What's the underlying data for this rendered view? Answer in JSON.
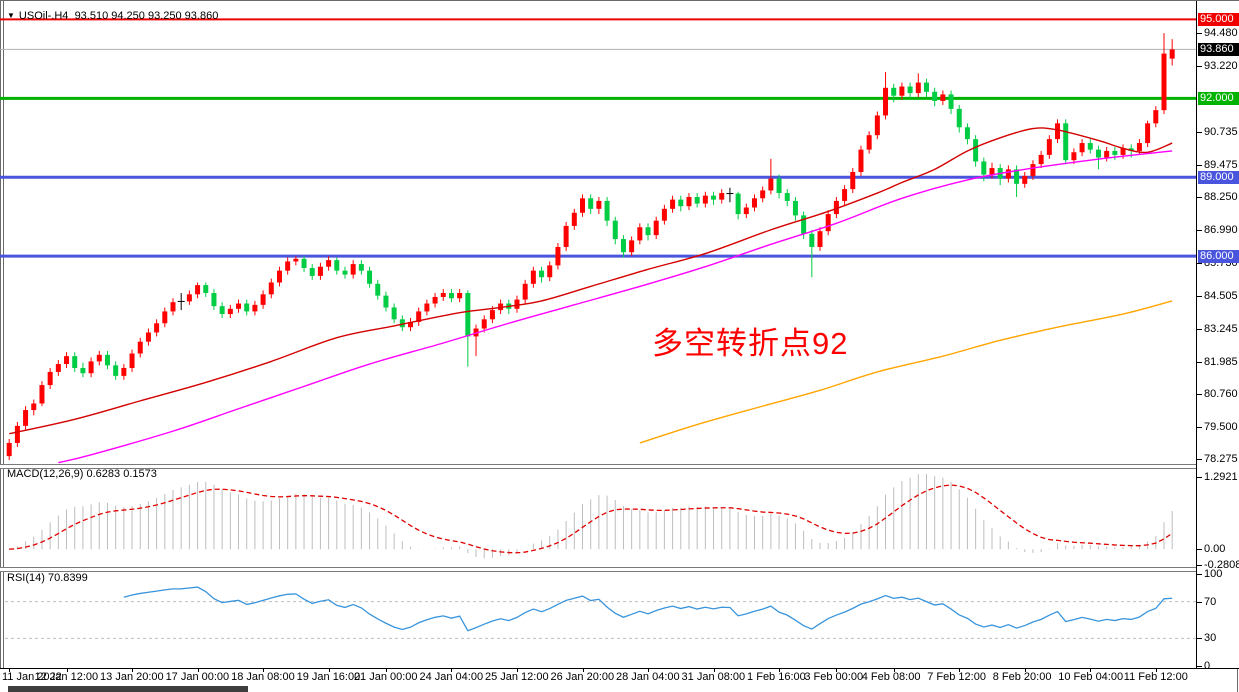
{
  "window": {
    "title": {
      "collapse_arrow": "▼",
      "symbol_period": "USOil-.H4",
      "ohlc_text": "93.510 94.250 93.250 93.860"
    }
  },
  "annotation": {
    "text": "多空转折点92",
    "color": "#ff0000"
  },
  "indicators": {
    "macd": {
      "label": "MACD(12,26,9)",
      "main_value": "0.6283",
      "signal_value": "0.1573",
      "axis_max": "1.2921",
      "axis_zero": "0.00",
      "axis_min": "-0.2808",
      "histogram_color": "#bdbdbd",
      "signal_color": "#e00000"
    },
    "rsi": {
      "label": "RSI(14)",
      "value": "70.8399",
      "axis": [
        "100",
        "70",
        "30",
        "0"
      ],
      "levels": [
        70,
        30
      ],
      "line_color": "#3894dc",
      "level_color": "#bfbfbf"
    }
  },
  "price_axis": {
    "ticks": [
      "94.480",
      "93.220",
      "90.735",
      "89.475",
      "88.250",
      "86.990",
      "85.730",
      "84.505",
      "83.245",
      "81.985",
      "80.760",
      "79.500",
      "78.275"
    ],
    "current_price_badge": {
      "label": "93.860",
      "bg": "#000000"
    }
  },
  "hlines": [
    {
      "name": "resistance-95",
      "label": "95.000",
      "value": 95.0,
      "color": "#f20000",
      "width": 2
    },
    {
      "name": "pivot-92",
      "label": "92.000",
      "value": 92.0,
      "color": "#00b300",
      "width": 3
    },
    {
      "name": "support-89",
      "label": "89.000",
      "value": 89.0,
      "color": "#4a55dd",
      "width": 3
    },
    {
      "name": "support-86",
      "label": "86.000",
      "value": 86.0,
      "color": "#4a55dd",
      "width": 3
    }
  ],
  "time_axis": {
    "labels": [
      {
        "t": "11 Jan 2022",
        "b": 0
      },
      {
        "t": "12 Jan 12:00",
        "b": 7
      },
      {
        "t": "13 Jan 20:00",
        "b": 15
      },
      {
        "t": "17 Jan 00:00",
        "b": 23
      },
      {
        "t": "18 Jan 08:00",
        "b": 31
      },
      {
        "t": "19 Jan 16:00",
        "b": 39
      },
      {
        "t": "21 Jan 00:00",
        "b": 46
      },
      {
        "t": "24 Jan 04:00",
        "b": 54
      },
      {
        "t": "25 Jan 12:00",
        "b": 62
      },
      {
        "t": "26 Jan 20:00",
        "b": 70
      },
      {
        "t": "28 Jan 04:00",
        "b": 78
      },
      {
        "t": "31 Jan 08:00",
        "b": 86
      },
      {
        "t": "1 Feb 16:00",
        "b": 94
      },
      {
        "t": "3 Feb 00:00",
        "b": 101
      },
      {
        "t": "4 Feb 08:00",
        "b": 108
      },
      {
        "t": "7 Feb 12:00",
        "b": 116
      },
      {
        "t": "8 Feb 20:00",
        "b": 124
      },
      {
        "t": "10 Feb 04:00",
        "b": 132
      },
      {
        "t": "11 Feb 12:00",
        "b": 140
      }
    ]
  },
  "chart_data": {
    "type": "candlestick+indicators",
    "symbol": "USOil",
    "timeframe": "H4",
    "current_price": 93.86,
    "price_view_range": [
      78.1,
      95.32
    ],
    "up_color": "#ff0000",
    "down_color": "#00cc44",
    "doji_color": "#000000",
    "candles": [
      [
        78.4,
        79.05,
        78.25,
        78.9
      ],
      [
        78.9,
        79.7,
        78.75,
        79.55
      ],
      [
        79.55,
        80.3,
        79.4,
        80.15
      ],
      [
        80.15,
        80.55,
        79.95,
        80.4
      ],
      [
        80.4,
        81.25,
        80.3,
        81.1
      ],
      [
        81.1,
        81.75,
        80.95,
        81.6
      ],
      [
        81.6,
        82.05,
        81.45,
        81.9
      ],
      [
        81.9,
        82.35,
        81.75,
        82.2
      ],
      [
        82.2,
        82.35,
        81.6,
        81.75
      ],
      [
        81.75,
        81.95,
        81.4,
        81.55
      ],
      [
        81.55,
        82.15,
        81.4,
        82.0
      ],
      [
        82.0,
        82.4,
        81.85,
        82.25
      ],
      [
        82.25,
        82.4,
        81.7,
        81.85
      ],
      [
        81.85,
        82.0,
        81.3,
        81.45
      ],
      [
        81.45,
        81.9,
        81.3,
        81.75
      ],
      [
        81.75,
        82.45,
        81.6,
        82.3
      ],
      [
        82.3,
        82.9,
        82.15,
        82.75
      ],
      [
        82.75,
        83.25,
        82.6,
        83.1
      ],
      [
        83.1,
        83.6,
        82.95,
        83.45
      ],
      [
        83.45,
        84.05,
        83.3,
        83.9
      ],
      [
        83.9,
        84.4,
        83.75,
        84.25
      ],
      [
        84.25,
        84.6,
        83.95,
        84.28
      ],
      [
        84.28,
        84.7,
        84.15,
        84.55
      ],
      [
        84.55,
        85.0,
        84.4,
        84.9
      ],
      [
        84.9,
        85.0,
        84.45,
        84.6
      ],
      [
        84.6,
        84.75,
        83.95,
        84.1
      ],
      [
        84.1,
        84.25,
        83.65,
        83.8
      ],
      [
        83.8,
        84.15,
        83.65,
        84.0
      ],
      [
        84.0,
        84.35,
        83.85,
        84.2
      ],
      [
        84.2,
        84.35,
        83.75,
        83.9
      ],
      [
        83.9,
        84.3,
        83.75,
        84.15
      ],
      [
        84.15,
        84.7,
        84.0,
        84.55
      ],
      [
        84.55,
        85.15,
        84.4,
        85.0
      ],
      [
        85.0,
        85.6,
        84.85,
        85.45
      ],
      [
        85.45,
        85.95,
        85.3,
        85.8
      ],
      [
        85.8,
        86.0,
        85.65,
        85.9
      ],
      [
        85.9,
        86.0,
        85.4,
        85.55
      ],
      [
        85.55,
        85.7,
        85.1,
        85.25
      ],
      [
        85.25,
        85.75,
        85.1,
        85.6
      ],
      [
        85.6,
        86.0,
        85.45,
        85.85
      ],
      [
        85.85,
        85.95,
        85.3,
        85.45
      ],
      [
        85.45,
        85.6,
        85.15,
        85.3
      ],
      [
        85.3,
        85.85,
        85.15,
        85.7
      ],
      [
        85.7,
        85.85,
        85.3,
        85.45
      ],
      [
        85.45,
        85.6,
        84.8,
        84.95
      ],
      [
        84.95,
        85.1,
        84.35,
        84.5
      ],
      [
        84.5,
        84.65,
        83.9,
        84.05
      ],
      [
        84.05,
        84.2,
        83.45,
        83.6
      ],
      [
        83.6,
        83.75,
        83.15,
        83.3
      ],
      [
        83.3,
        83.65,
        83.15,
        83.5
      ],
      [
        83.5,
        84.05,
        83.35,
        83.9
      ],
      [
        83.9,
        84.35,
        83.75,
        84.2
      ],
      [
        84.2,
        84.6,
        84.05,
        84.45
      ],
      [
        84.45,
        84.75,
        84.3,
        84.6
      ],
      [
        84.6,
        84.75,
        84.25,
        84.4
      ],
      [
        84.4,
        84.75,
        84.25,
        84.6
      ],
      [
        84.6,
        84.7,
        81.8,
        82.95
      ],
      [
        82.95,
        83.4,
        82.2,
        83.25
      ],
      [
        83.25,
        83.75,
        83.1,
        83.6
      ],
      [
        83.6,
        84.1,
        83.45,
        83.95
      ],
      [
        83.95,
        84.35,
        83.8,
        84.2
      ],
      [
        84.2,
        84.35,
        83.8,
        84.0
      ],
      [
        84.0,
        84.5,
        83.85,
        84.35
      ],
      [
        84.35,
        85.1,
        84.2,
        84.95
      ],
      [
        84.95,
        85.6,
        84.8,
        85.45
      ],
      [
        85.45,
        85.6,
        85.0,
        85.2
      ],
      [
        85.2,
        85.8,
        85.05,
        85.65
      ],
      [
        85.65,
        86.5,
        85.5,
        86.35
      ],
      [
        86.35,
        87.3,
        86.2,
        87.15
      ],
      [
        87.15,
        87.8,
        87.0,
        87.65
      ],
      [
        87.65,
        88.35,
        87.5,
        88.2
      ],
      [
        88.2,
        88.35,
        87.6,
        87.8
      ],
      [
        87.8,
        88.25,
        87.6,
        88.1
      ],
      [
        88.1,
        88.25,
        87.15,
        87.35
      ],
      [
        87.35,
        87.5,
        86.45,
        86.65
      ],
      [
        86.65,
        86.8,
        85.95,
        86.15
      ],
      [
        86.15,
        86.75,
        86.0,
        86.6
      ],
      [
        86.6,
        87.25,
        86.45,
        87.1
      ],
      [
        87.1,
        87.25,
        86.6,
        86.8
      ],
      [
        86.8,
        87.5,
        86.65,
        87.35
      ],
      [
        87.35,
        87.95,
        87.2,
        87.8
      ],
      [
        87.8,
        88.3,
        87.65,
        88.15
      ],
      [
        88.15,
        88.3,
        87.7,
        87.9
      ],
      [
        87.9,
        88.4,
        87.75,
        88.25
      ],
      [
        88.25,
        88.4,
        87.85,
        88.0
      ],
      [
        88.0,
        88.45,
        87.85,
        88.3
      ],
      [
        88.3,
        88.45,
        87.95,
        88.15
      ],
      [
        88.15,
        88.55,
        88.0,
        88.4
      ],
      [
        88.4,
        88.6,
        88.05,
        88.38
      ],
      [
        88.38,
        88.45,
        87.4,
        87.6
      ],
      [
        87.6,
        88.0,
        87.45,
        87.85
      ],
      [
        87.85,
        88.35,
        87.7,
        88.2
      ],
      [
        88.2,
        88.65,
        88.05,
        88.5
      ],
      [
        88.5,
        89.7,
        88.35,
        88.95
      ],
      [
        88.95,
        89.1,
        88.2,
        88.4
      ],
      [
        88.4,
        88.55,
        87.9,
        88.1
      ],
      [
        88.1,
        88.25,
        87.35,
        87.55
      ],
      [
        87.55,
        87.7,
        86.65,
        86.85
      ],
      [
        86.85,
        87.0,
        85.2,
        86.35
      ],
      [
        86.35,
        87.1,
        86.2,
        86.95
      ],
      [
        86.95,
        87.75,
        86.8,
        87.6
      ],
      [
        87.6,
        88.25,
        87.45,
        88.1
      ],
      [
        88.1,
        88.7,
        87.95,
        88.55
      ],
      [
        88.55,
        89.35,
        88.4,
        89.2
      ],
      [
        89.2,
        90.2,
        89.05,
        90.05
      ],
      [
        90.05,
        90.75,
        89.9,
        90.6
      ],
      [
        90.6,
        91.5,
        90.45,
        91.35
      ],
      [
        91.35,
        93.0,
        91.2,
        92.4
      ],
      [
        92.4,
        92.55,
        91.85,
        92.1
      ],
      [
        92.1,
        92.6,
        91.95,
        92.45
      ],
      [
        92.45,
        92.6,
        92.0,
        92.2
      ],
      [
        92.2,
        92.95,
        92.05,
        92.6
      ],
      [
        92.6,
        92.75,
        92.05,
        92.25
      ],
      [
        92.25,
        92.4,
        91.7,
        91.9
      ],
      [
        91.9,
        92.3,
        91.75,
        92.15
      ],
      [
        92.15,
        92.3,
        91.4,
        91.6
      ],
      [
        91.6,
        91.75,
        90.7,
        90.9
      ],
      [
        90.9,
        91.05,
        90.25,
        90.45
      ],
      [
        90.45,
        90.6,
        89.4,
        89.6
      ],
      [
        89.6,
        89.75,
        88.85,
        89.1
      ],
      [
        89.1,
        89.55,
        88.95,
        89.35
      ],
      [
        89.35,
        89.5,
        88.7,
        88.95
      ],
      [
        88.95,
        89.45,
        88.8,
        89.3
      ],
      [
        89.3,
        89.45,
        88.25,
        88.75
      ],
      [
        88.75,
        89.2,
        88.6,
        89.05
      ],
      [
        89.05,
        89.65,
        88.9,
        89.5
      ],
      [
        89.5,
        90.0,
        89.35,
        89.85
      ],
      [
        89.85,
        90.6,
        89.7,
        90.45
      ],
      [
        90.45,
        91.2,
        90.3,
        91.05
      ],
      [
        91.05,
        91.2,
        89.5,
        89.65
      ],
      [
        89.65,
        90.1,
        89.5,
        89.95
      ],
      [
        89.95,
        90.45,
        89.8,
        90.3
      ],
      [
        90.3,
        90.45,
        89.9,
        90.05
      ],
      [
        90.05,
        90.2,
        89.3,
        89.75
      ],
      [
        89.75,
        90.15,
        89.6,
        90.0
      ],
      [
        90.0,
        90.15,
        89.65,
        89.85
      ],
      [
        89.85,
        90.25,
        89.7,
        90.1
      ],
      [
        90.1,
        90.25,
        89.75,
        90.0
      ],
      [
        90.0,
        90.45,
        89.85,
        90.3
      ],
      [
        90.3,
        91.15,
        90.15,
        91.05
      ],
      [
        91.05,
        91.7,
        90.9,
        91.55
      ],
      [
        91.55,
        94.48,
        91.4,
        93.7
      ],
      [
        93.51,
        94.25,
        93.25,
        93.86
      ]
    ],
    "moving_averages": [
      {
        "name": "ma-fast-red",
        "color": "#d40000",
        "points": [
          [
            0,
            79.25
          ],
          [
            8,
            79.8
          ],
          [
            16,
            80.5
          ],
          [
            24,
            81.2
          ],
          [
            32,
            82.0
          ],
          [
            40,
            82.9
          ],
          [
            47,
            83.35
          ],
          [
            55,
            83.85
          ],
          [
            60,
            84.05
          ],
          [
            65,
            84.3
          ],
          [
            71,
            84.85
          ],
          [
            78,
            85.5
          ],
          [
            85,
            86.1
          ],
          [
            93,
            87.0
          ],
          [
            100,
            87.7
          ],
          [
            106,
            88.4
          ],
          [
            109,
            88.8
          ],
          [
            113,
            89.3
          ],
          [
            117,
            90.0
          ],
          [
            121,
            90.5
          ],
          [
            125,
            90.85
          ],
          [
            128,
            90.8
          ],
          [
            133,
            90.4
          ],
          [
            136,
            90.1
          ],
          [
            139,
            89.95
          ],
          [
            142,
            90.3
          ]
        ]
      },
      {
        "name": "ma-mid-magenta",
        "color": "#ff00ff",
        "points": [
          [
            6,
            78.15
          ],
          [
            10,
            78.45
          ],
          [
            20,
            79.35
          ],
          [
            28,
            80.2
          ],
          [
            36,
            81.05
          ],
          [
            44,
            81.9
          ],
          [
            53,
            82.7
          ],
          [
            61,
            83.45
          ],
          [
            69,
            84.15
          ],
          [
            77,
            84.85
          ],
          [
            85,
            85.6
          ],
          [
            93,
            86.45
          ],
          [
            101,
            87.25
          ],
          [
            109,
            88.2
          ],
          [
            117,
            88.9
          ],
          [
            124,
            89.3
          ],
          [
            132,
            89.65
          ],
          [
            136,
            89.8
          ],
          [
            142,
            90.0
          ]
        ]
      },
      {
        "name": "ma-slow-orange",
        "color": "#ffa500",
        "points": [
          [
            77,
            78.9
          ],
          [
            84,
            79.6
          ],
          [
            92,
            80.3
          ],
          [
            99,
            80.9
          ],
          [
            106,
            81.6
          ],
          [
            114,
            82.2
          ],
          [
            121,
            82.8
          ],
          [
            128,
            83.3
          ],
          [
            136,
            83.8
          ],
          [
            142,
            84.3
          ]
        ]
      }
    ],
    "macd_view_range": [
      -0.3,
      1.468
    ],
    "rsi_view_range": [
      0,
      100
    ]
  }
}
